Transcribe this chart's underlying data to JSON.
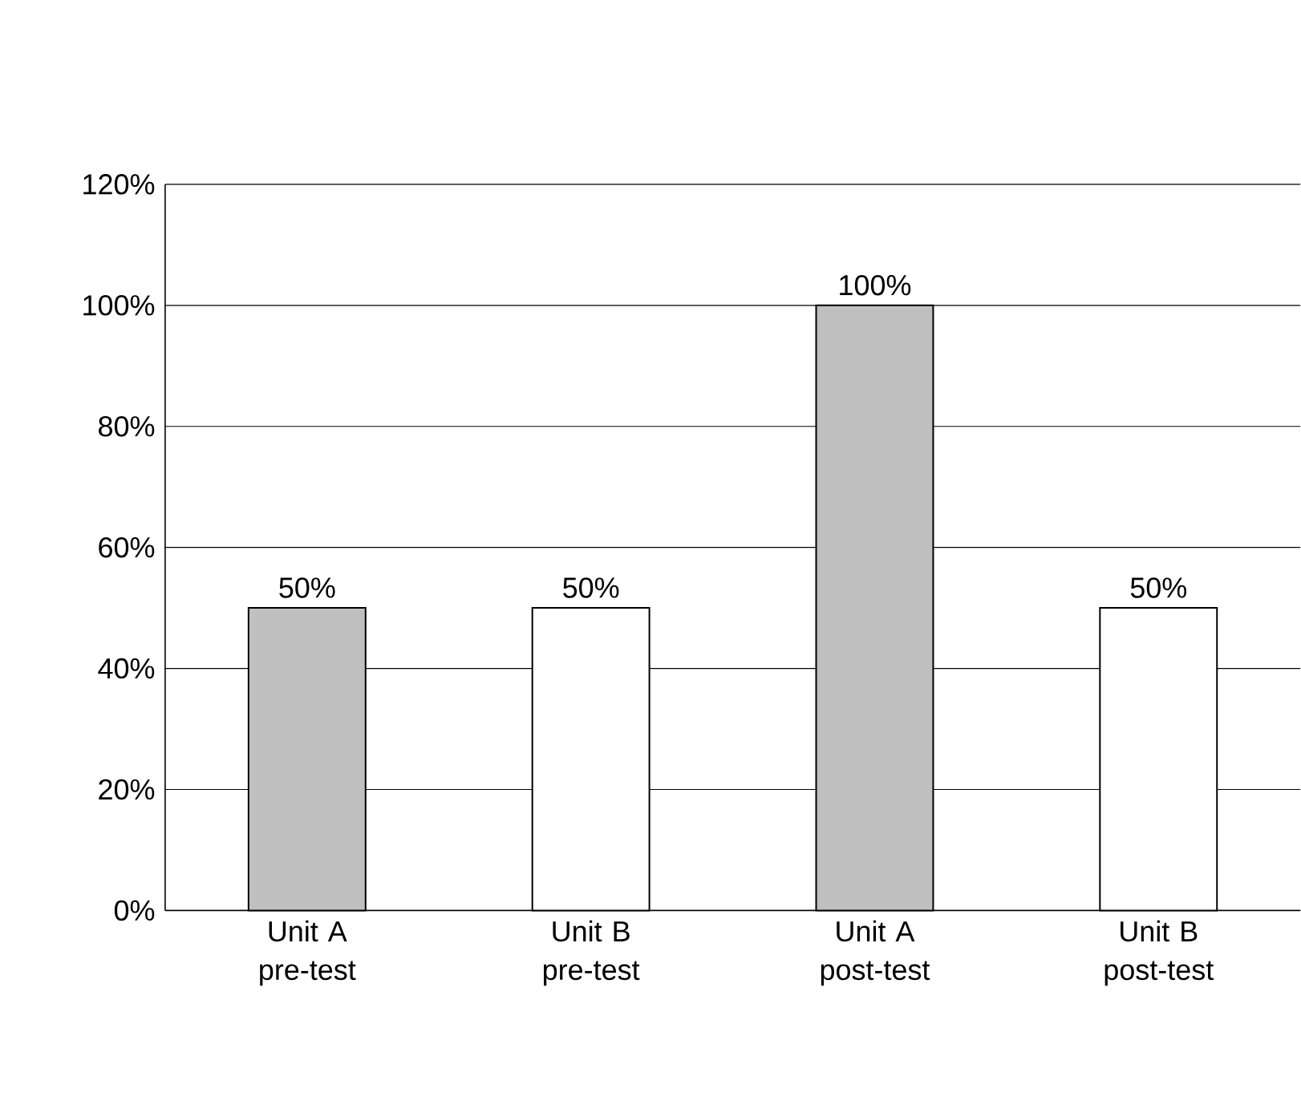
{
  "chart_data": {
    "type": "bar",
    "categories": [
      "Unit A pre-test",
      "Unit B pre-test",
      "Unit A post-test",
      "Unit B post-test"
    ],
    "values": [
      50,
      50,
      100,
      50
    ],
    "colors": [
      "#c0c0c0",
      "#ffffff",
      "#c0c0c0",
      "#ffffff"
    ],
    "value_labels": [
      "50%",
      "50%",
      "100%",
      "50%"
    ],
    "ylim": [
      0,
      120
    ],
    "yticks": [
      {
        "value": 0,
        "label": "0%"
      },
      {
        "value": 20,
        "label": "20%"
      },
      {
        "value": 40,
        "label": "40%"
      },
      {
        "value": 60,
        "label": "60%"
      },
      {
        "value": 80,
        "label": "80%"
      },
      {
        "value": 100,
        "label": "100%"
      },
      {
        "value": 120,
        "label": "120%"
      }
    ],
    "grid": "y"
  }
}
